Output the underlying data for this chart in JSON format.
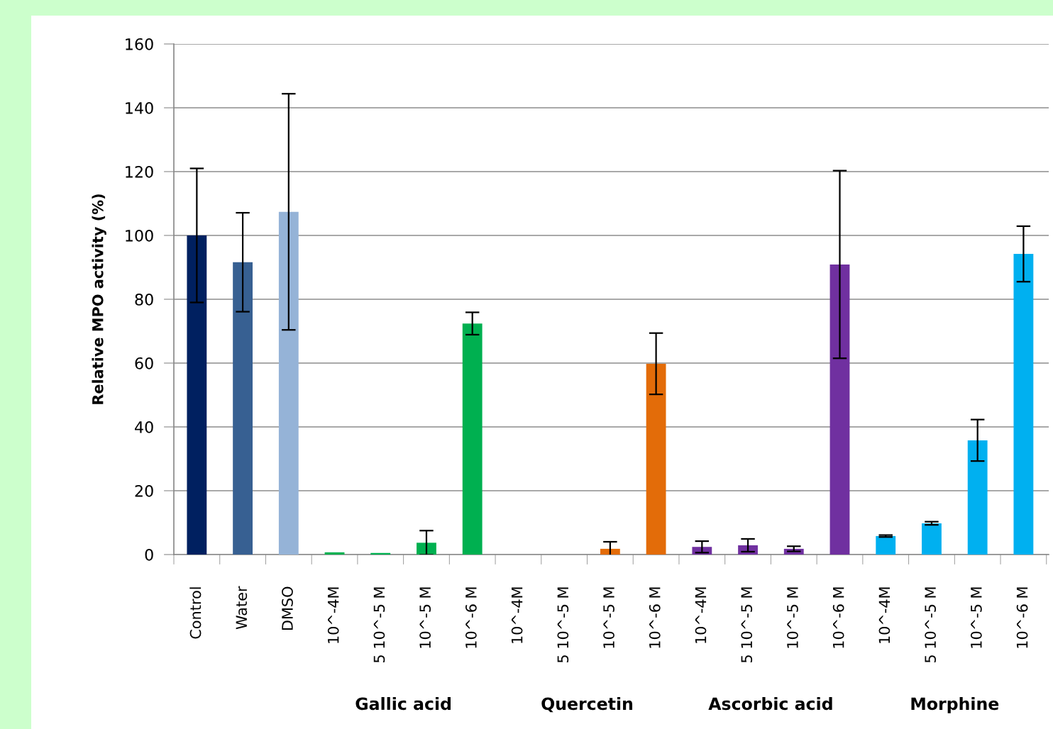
{
  "chart_data": {
    "type": "bar",
    "ylabel": "Relative MPO activity (%)",
    "categories": [
      "Control",
      "Water",
      "DMSO",
      "10^-4M",
      "5 10^-5 M",
      "10^-5 M",
      "10^-6 M",
      "10^-4M",
      "5 10^-5 M",
      "10^-5 M",
      "10^-6 M",
      "10^-4M",
      "5 10^-5 M",
      "10^-5 M",
      "10^-6 M",
      "10^-4M",
      "5 10^-5 M",
      "10^-5 M",
      "10^-6 M"
    ],
    "values": [
      100,
      91.6,
      107.4,
      0.7,
      0.5,
      3.7,
      72.4,
      0,
      0,
      1.8,
      59.8,
      2.4,
      2.9,
      1.8,
      90.9,
      5.8,
      9.8,
      35.8,
      94.2
    ],
    "errors": [
      21,
      15.5,
      37,
      null,
      null,
      3.8,
      3.5,
      null,
      null,
      2.2,
      9.6,
      1.8,
      2,
      0.8,
      29.4,
      0.3,
      0.5,
      6.5,
      8.7
    ],
    "colors": [
      "#002060",
      "#376092",
      "#95b3d7",
      "#00b050",
      "#00b050",
      "#00b050",
      "#00b050",
      "#e36c09",
      "#e36c09",
      "#e36c09",
      "#e36c09",
      "#7030a0",
      "#7030a0",
      "#7030a0",
      "#7030a0",
      "#00b0f0",
      "#00b0f0",
      "#00b0f0",
      "#00b0f0"
    ],
    "annotations": [
      "Gallic acid",
      "Quercetin",
      "Ascorbic acid",
      "Morphine"
    ],
    "ylim": [
      0,
      160
    ],
    "yticks": [
      0,
      20,
      40,
      60,
      80,
      100,
      120,
      140,
      160
    ],
    "grid": "y",
    "legend": false
  }
}
